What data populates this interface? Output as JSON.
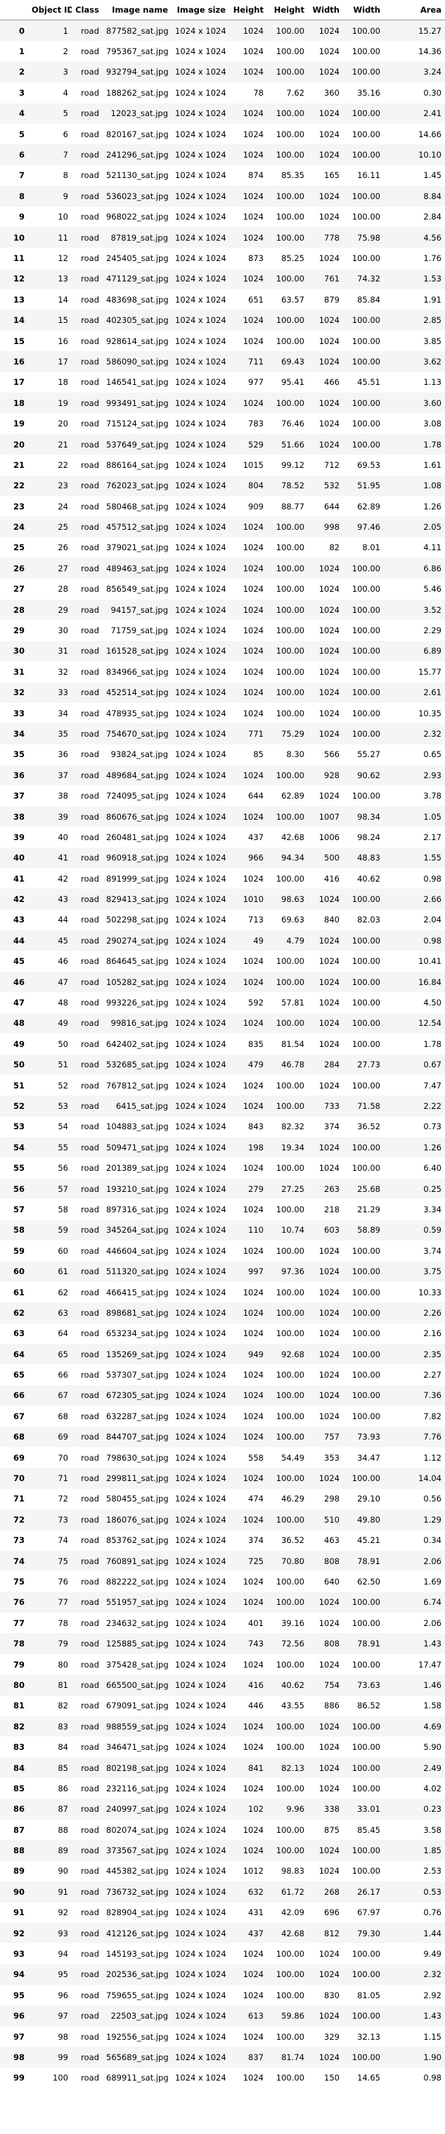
{
  "columns": [
    "",
    "Object ID",
    "Class",
    "Image name",
    "Image size",
    "Height",
    "Height",
    "Width",
    "Width",
    "Area"
  ],
  "rows": [
    [
      "0",
      "1",
      "road",
      "877582_sat.jpg",
      "1024 x 1024",
      "1024",
      "100.00",
      "1024",
      "100.00",
      "15.27"
    ],
    [
      "1",
      "2",
      "road",
      "795367_sat.jpg",
      "1024 x 1024",
      "1024",
      "100.00",
      "1024",
      "100.00",
      "14.36"
    ],
    [
      "2",
      "3",
      "road",
      "932794_sat.jpg",
      "1024 x 1024",
      "1024",
      "100.00",
      "1024",
      "100.00",
      "3.24"
    ],
    [
      "3",
      "4",
      "road",
      "188262_sat.jpg",
      "1024 x 1024",
      "78",
      "7.62",
      "360",
      "35.16",
      "0.30"
    ],
    [
      "4",
      "5",
      "road",
      "12023_sat.jpg",
      "1024 x 1024",
      "1024",
      "100.00",
      "1024",
      "100.00",
      "2.41"
    ],
    [
      "5",
      "6",
      "road",
      "820167_sat.jpg",
      "1024 x 1024",
      "1024",
      "100.00",
      "1024",
      "100.00",
      "14.66"
    ],
    [
      "6",
      "7",
      "road",
      "241296_sat.jpg",
      "1024 x 1024",
      "1024",
      "100.00",
      "1024",
      "100.00",
      "10.10"
    ],
    [
      "7",
      "8",
      "road",
      "521130_sat.jpg",
      "1024 x 1024",
      "874",
      "85.35",
      "165",
      "16.11",
      "1.45"
    ],
    [
      "8",
      "9",
      "road",
      "536023_sat.jpg",
      "1024 x 1024",
      "1024",
      "100.00",
      "1024",
      "100.00",
      "8.84"
    ],
    [
      "9",
      "10",
      "road",
      "968022_sat.jpg",
      "1024 x 1024",
      "1024",
      "100.00",
      "1024",
      "100.00",
      "2.84"
    ],
    [
      "10",
      "11",
      "road",
      "87819_sat.jpg",
      "1024 x 1024",
      "1024",
      "100.00",
      "778",
      "75.98",
      "4.56"
    ],
    [
      "11",
      "12",
      "road",
      "245405_sat.jpg",
      "1024 x 1024",
      "873",
      "85.25",
      "1024",
      "100.00",
      "1.76"
    ],
    [
      "12",
      "13",
      "road",
      "471129_sat.jpg",
      "1024 x 1024",
      "1024",
      "100.00",
      "761",
      "74.32",
      "1.53"
    ],
    [
      "13",
      "14",
      "road",
      "483698_sat.jpg",
      "1024 x 1024",
      "651",
      "63.57",
      "879",
      "85.84",
      "1.91"
    ],
    [
      "14",
      "15",
      "road",
      "402305_sat.jpg",
      "1024 x 1024",
      "1024",
      "100.00",
      "1024",
      "100.00",
      "2.85"
    ],
    [
      "15",
      "16",
      "road",
      "928614_sat.jpg",
      "1024 x 1024",
      "1024",
      "100.00",
      "1024",
      "100.00",
      "3.85"
    ],
    [
      "16",
      "17",
      "road",
      "586090_sat.jpg",
      "1024 x 1024",
      "711",
      "69.43",
      "1024",
      "100.00",
      "3.62"
    ],
    [
      "17",
      "18",
      "road",
      "146541_sat.jpg",
      "1024 x 1024",
      "977",
      "95.41",
      "466",
      "45.51",
      "1.13"
    ],
    [
      "18",
      "19",
      "road",
      "993491_sat.jpg",
      "1024 x 1024",
      "1024",
      "100.00",
      "1024",
      "100.00",
      "3.60"
    ],
    [
      "19",
      "20",
      "road",
      "715124_sat.jpg",
      "1024 x 1024",
      "783",
      "76.46",
      "1024",
      "100.00",
      "3.08"
    ],
    [
      "20",
      "21",
      "road",
      "537649_sat.jpg",
      "1024 x 1024",
      "529",
      "51.66",
      "1024",
      "100.00",
      "1.78"
    ],
    [
      "21",
      "22",
      "road",
      "886164_sat.jpg",
      "1024 x 1024",
      "1015",
      "99.12",
      "712",
      "69.53",
      "1.61"
    ],
    [
      "22",
      "23",
      "road",
      "762023_sat.jpg",
      "1024 x 1024",
      "804",
      "78.52",
      "532",
      "51.95",
      "1.08"
    ],
    [
      "23",
      "24",
      "road",
      "580468_sat.jpg",
      "1024 x 1024",
      "909",
      "88.77",
      "644",
      "62.89",
      "1.26"
    ],
    [
      "24",
      "25",
      "road",
      "457512_sat.jpg",
      "1024 x 1024",
      "1024",
      "100.00",
      "998",
      "97.46",
      "2.05"
    ],
    [
      "25",
      "26",
      "road",
      "379021_sat.jpg",
      "1024 x 1024",
      "1024",
      "100.00",
      "82",
      "8.01",
      "4.11"
    ],
    [
      "26",
      "27",
      "road",
      "489463_sat.jpg",
      "1024 x 1024",
      "1024",
      "100.00",
      "1024",
      "100.00",
      "6.86"
    ],
    [
      "27",
      "28",
      "road",
      "856549_sat.jpg",
      "1024 x 1024",
      "1024",
      "100.00",
      "1024",
      "100.00",
      "5.46"
    ],
    [
      "28",
      "29",
      "road",
      "94157_sat.jpg",
      "1024 x 1024",
      "1024",
      "100.00",
      "1024",
      "100.00",
      "3.52"
    ],
    [
      "29",
      "30",
      "road",
      "71759_sat.jpg",
      "1024 x 1024",
      "1024",
      "100.00",
      "1024",
      "100.00",
      "2.29"
    ],
    [
      "30",
      "31",
      "road",
      "161528_sat.jpg",
      "1024 x 1024",
      "1024",
      "100.00",
      "1024",
      "100.00",
      "6.89"
    ],
    [
      "31",
      "32",
      "road",
      "834966_sat.jpg",
      "1024 x 1024",
      "1024",
      "100.00",
      "1024",
      "100.00",
      "15.77"
    ],
    [
      "32",
      "33",
      "road",
      "452514_sat.jpg",
      "1024 x 1024",
      "1024",
      "100.00",
      "1024",
      "100.00",
      "2.61"
    ],
    [
      "33",
      "34",
      "road",
      "478935_sat.jpg",
      "1024 x 1024",
      "1024",
      "100.00",
      "1024",
      "100.00",
      "10.35"
    ],
    [
      "34",
      "35",
      "road",
      "754670_sat.jpg",
      "1024 x 1024",
      "771",
      "75.29",
      "1024",
      "100.00",
      "2.32"
    ],
    [
      "35",
      "36",
      "road",
      "93824_sat.jpg",
      "1024 x 1024",
      "85",
      "8.30",
      "566",
      "55.27",
      "0.65"
    ],
    [
      "36",
      "37",
      "road",
      "489684_sat.jpg",
      "1024 x 1024",
      "1024",
      "100.00",
      "928",
      "90.62",
      "2.93"
    ],
    [
      "37",
      "38",
      "road",
      "724095_sat.jpg",
      "1024 x 1024",
      "644",
      "62.89",
      "1024",
      "100.00",
      "3.78"
    ],
    [
      "38",
      "39",
      "road",
      "860676_sat.jpg",
      "1024 x 1024",
      "1024",
      "100.00",
      "1007",
      "98.34",
      "1.05"
    ],
    [
      "39",
      "40",
      "road",
      "260481_sat.jpg",
      "1024 x 1024",
      "437",
      "42.68",
      "1006",
      "98.24",
      "2.17"
    ],
    [
      "40",
      "41",
      "road",
      "960918_sat.jpg",
      "1024 x 1024",
      "966",
      "94.34",
      "500",
      "48.83",
      "1.55"
    ],
    [
      "41",
      "42",
      "road",
      "891999_sat.jpg",
      "1024 x 1024",
      "1024",
      "100.00",
      "416",
      "40.62",
      "0.98"
    ],
    [
      "42",
      "43",
      "road",
      "829413_sat.jpg",
      "1024 x 1024",
      "1010",
      "98.63",
      "1024",
      "100.00",
      "2.66"
    ],
    [
      "43",
      "44",
      "road",
      "502298_sat.jpg",
      "1024 x 1024",
      "713",
      "69.63",
      "840",
      "82.03",
      "2.04"
    ],
    [
      "44",
      "45",
      "road",
      "290274_sat.jpg",
      "1024 x 1024",
      "49",
      "4.79",
      "1024",
      "100.00",
      "0.98"
    ],
    [
      "45",
      "46",
      "road",
      "864645_sat.jpg",
      "1024 x 1024",
      "1024",
      "100.00",
      "1024",
      "100.00",
      "10.41"
    ],
    [
      "46",
      "47",
      "road",
      "105282_sat.jpg",
      "1024 x 1024",
      "1024",
      "100.00",
      "1024",
      "100.00",
      "16.84"
    ],
    [
      "47",
      "48",
      "road",
      "993226_sat.jpg",
      "1024 x 1024",
      "592",
      "57.81",
      "1024",
      "100.00",
      "4.50"
    ],
    [
      "48",
      "49",
      "road",
      "99816_sat.jpg",
      "1024 x 1024",
      "1024",
      "100.00",
      "1024",
      "100.00",
      "12.54"
    ],
    [
      "49",
      "50",
      "road",
      "642402_sat.jpg",
      "1024 x 1024",
      "835",
      "81.54",
      "1024",
      "100.00",
      "1.78"
    ],
    [
      "50",
      "51",
      "road",
      "532685_sat.jpg",
      "1024 x 1024",
      "479",
      "46.78",
      "284",
      "27.73",
      "0.67"
    ],
    [
      "51",
      "52",
      "road",
      "767812_sat.jpg",
      "1024 x 1024",
      "1024",
      "100.00",
      "1024",
      "100.00",
      "7.47"
    ],
    [
      "52",
      "53",
      "road",
      "6415_sat.jpg",
      "1024 x 1024",
      "1024",
      "100.00",
      "733",
      "71.58",
      "2.22"
    ],
    [
      "53",
      "54",
      "road",
      "104883_sat.jpg",
      "1024 x 1024",
      "843",
      "82.32",
      "374",
      "36.52",
      "0.73"
    ],
    [
      "54",
      "55",
      "road",
      "509471_sat.jpg",
      "1024 x 1024",
      "198",
      "19.34",
      "1024",
      "100.00",
      "1.26"
    ],
    [
      "55",
      "56",
      "road",
      "201389_sat.jpg",
      "1024 x 1024",
      "1024",
      "100.00",
      "1024",
      "100.00",
      "6.40"
    ],
    [
      "56",
      "57",
      "road",
      "193210_sat.jpg",
      "1024 x 1024",
      "279",
      "27.25",
      "263",
      "25.68",
      "0.25"
    ],
    [
      "57",
      "58",
      "road",
      "897316_sat.jpg",
      "1024 x 1024",
      "1024",
      "100.00",
      "218",
      "21.29",
      "3.34"
    ],
    [
      "58",
      "59",
      "road",
      "345264_sat.jpg",
      "1024 x 1024",
      "110",
      "10.74",
      "603",
      "58.89",
      "0.59"
    ],
    [
      "59",
      "60",
      "road",
      "446604_sat.jpg",
      "1024 x 1024",
      "1024",
      "100.00",
      "1024",
      "100.00",
      "3.74"
    ],
    [
      "60",
      "61",
      "road",
      "511320_sat.jpg",
      "1024 x 1024",
      "997",
      "97.36",
      "1024",
      "100.00",
      "3.75"
    ],
    [
      "61",
      "62",
      "road",
      "466415_sat.jpg",
      "1024 x 1024",
      "1024",
      "100.00",
      "1024",
      "100.00",
      "10.33"
    ],
    [
      "62",
      "63",
      "road",
      "898681_sat.jpg",
      "1024 x 1024",
      "1024",
      "100.00",
      "1024",
      "100.00",
      "2.26"
    ],
    [
      "63",
      "64",
      "road",
      "653234_sat.jpg",
      "1024 x 1024",
      "1024",
      "100.00",
      "1024",
      "100.00",
      "2.16"
    ],
    [
      "64",
      "65",
      "road",
      "135269_sat.jpg",
      "1024 x 1024",
      "949",
      "92.68",
      "1024",
      "100.00",
      "2.35"
    ],
    [
      "65",
      "66",
      "road",
      "537307_sat.jpg",
      "1024 x 1024",
      "1024",
      "100.00",
      "1024",
      "100.00",
      "2.27"
    ],
    [
      "66",
      "67",
      "road",
      "672305_sat.jpg",
      "1024 x 1024",
      "1024",
      "100.00",
      "1024",
      "100.00",
      "7.36"
    ],
    [
      "67",
      "68",
      "road",
      "632287_sat.jpg",
      "1024 x 1024",
      "1024",
      "100.00",
      "1024",
      "100.00",
      "7.82"
    ],
    [
      "68",
      "69",
      "road",
      "844707_sat.jpg",
      "1024 x 1024",
      "1024",
      "100.00",
      "757",
      "73.93",
      "7.76"
    ],
    [
      "69",
      "70",
      "road",
      "798630_sat.jpg",
      "1024 x 1024",
      "558",
      "54.49",
      "353",
      "34.47",
      "1.12"
    ],
    [
      "70",
      "71",
      "road",
      "299811_sat.jpg",
      "1024 x 1024",
      "1024",
      "100.00",
      "1024",
      "100.00",
      "14.04"
    ],
    [
      "71",
      "72",
      "road",
      "580455_sat.jpg",
      "1024 x 1024",
      "474",
      "46.29",
      "298",
      "29.10",
      "0.56"
    ],
    [
      "72",
      "73",
      "road",
      "186076_sat.jpg",
      "1024 x 1024",
      "1024",
      "100.00",
      "510",
      "49.80",
      "1.29"
    ],
    [
      "73",
      "74",
      "road",
      "853762_sat.jpg",
      "1024 x 1024",
      "374",
      "36.52",
      "463",
      "45.21",
      "0.34"
    ],
    [
      "74",
      "75",
      "road",
      "760891_sat.jpg",
      "1024 x 1024",
      "725",
      "70.80",
      "808",
      "78.91",
      "2.06"
    ],
    [
      "75",
      "76",
      "road",
      "882222_sat.jpg",
      "1024 x 1024",
      "1024",
      "100.00",
      "640",
      "62.50",
      "1.69"
    ],
    [
      "76",
      "77",
      "road",
      "551957_sat.jpg",
      "1024 x 1024",
      "1024",
      "100.00",
      "1024",
      "100.00",
      "6.74"
    ],
    [
      "77",
      "78",
      "road",
      "234632_sat.jpg",
      "1024 x 1024",
      "401",
      "39.16",
      "1024",
      "100.00",
      "2.06"
    ],
    [
      "78",
      "79",
      "road",
      "125885_sat.jpg",
      "1024 x 1024",
      "743",
      "72.56",
      "808",
      "78.91",
      "1.43"
    ],
    [
      "79",
      "80",
      "road",
      "375428_sat.jpg",
      "1024 x 1024",
      "1024",
      "100.00",
      "1024",
      "100.00",
      "17.47"
    ],
    [
      "80",
      "81",
      "road",
      "665500_sat.jpg",
      "1024 x 1024",
      "416",
      "40.62",
      "754",
      "73.63",
      "1.46"
    ],
    [
      "81",
      "82",
      "road",
      "679091_sat.jpg",
      "1024 x 1024",
      "446",
      "43.55",
      "886",
      "86.52",
      "1.58"
    ],
    [
      "82",
      "83",
      "road",
      "988559_sat.jpg",
      "1024 x 1024",
      "1024",
      "100.00",
      "1024",
      "100.00",
      "4.69"
    ],
    [
      "83",
      "84",
      "road",
      "346471_sat.jpg",
      "1024 x 1024",
      "1024",
      "100.00",
      "1024",
      "100.00",
      "5.90"
    ],
    [
      "84",
      "85",
      "road",
      "802198_sat.jpg",
      "1024 x 1024",
      "841",
      "82.13",
      "1024",
      "100.00",
      "2.49"
    ],
    [
      "85",
      "86",
      "road",
      "232116_sat.jpg",
      "1024 x 1024",
      "1024",
      "100.00",
      "1024",
      "100.00",
      "4.02"
    ],
    [
      "86",
      "87",
      "road",
      "240997_sat.jpg",
      "1024 x 1024",
      "102",
      "9.96",
      "338",
      "33.01",
      "0.23"
    ],
    [
      "87",
      "88",
      "road",
      "802074_sat.jpg",
      "1024 x 1024",
      "1024",
      "100.00",
      "875",
      "85.45",
      "3.58"
    ],
    [
      "88",
      "89",
      "road",
      "373567_sat.jpg",
      "1024 x 1024",
      "1024",
      "100.00",
      "1024",
      "100.00",
      "1.85"
    ],
    [
      "89",
      "90",
      "road",
      "445382_sat.jpg",
      "1024 x 1024",
      "1012",
      "98.83",
      "1024",
      "100.00",
      "2.53"
    ],
    [
      "90",
      "91",
      "road",
      "736732_sat.jpg",
      "1024 x 1024",
      "632",
      "61.72",
      "268",
      "26.17",
      "0.53"
    ],
    [
      "91",
      "92",
      "road",
      "828904_sat.jpg",
      "1024 x 1024",
      "431",
      "42.09",
      "696",
      "67.97",
      "0.76"
    ],
    [
      "92",
      "93",
      "road",
      "412126_sat.jpg",
      "1024 x 1024",
      "437",
      "42.68",
      "812",
      "79.30",
      "1.44"
    ],
    [
      "93",
      "94",
      "road",
      "145193_sat.jpg",
      "1024 x 1024",
      "1024",
      "100.00",
      "1024",
      "100.00",
      "9.49"
    ],
    [
      "94",
      "95",
      "road",
      "202536_sat.jpg",
      "1024 x 1024",
      "1024",
      "100.00",
      "1024",
      "100.00",
      "2.32"
    ],
    [
      "95",
      "96",
      "road",
      "759655_sat.jpg",
      "1024 x 1024",
      "1024",
      "100.00",
      "830",
      "81.05",
      "2.92"
    ],
    [
      "96",
      "97",
      "road",
      "22503_sat.jpg",
      "1024 x 1024",
      "613",
      "59.86",
      "1024",
      "100.00",
      "1.43"
    ],
    [
      "97",
      "98",
      "road",
      "192556_sat.jpg",
      "1024 x 1024",
      "1024",
      "100.00",
      "329",
      "32.13",
      "1.15"
    ],
    [
      "98",
      "99",
      "road",
      "565689_sat.jpg",
      "1024 x 1024",
      "837",
      "81.74",
      "1024",
      "100.00",
      "1.90"
    ],
    [
      "99",
      "100",
      "road",
      "689911_sat.jpg",
      "1024 x 1024",
      "1024",
      "100.00",
      "150",
      "14.65",
      "0.98"
    ]
  ]
}
